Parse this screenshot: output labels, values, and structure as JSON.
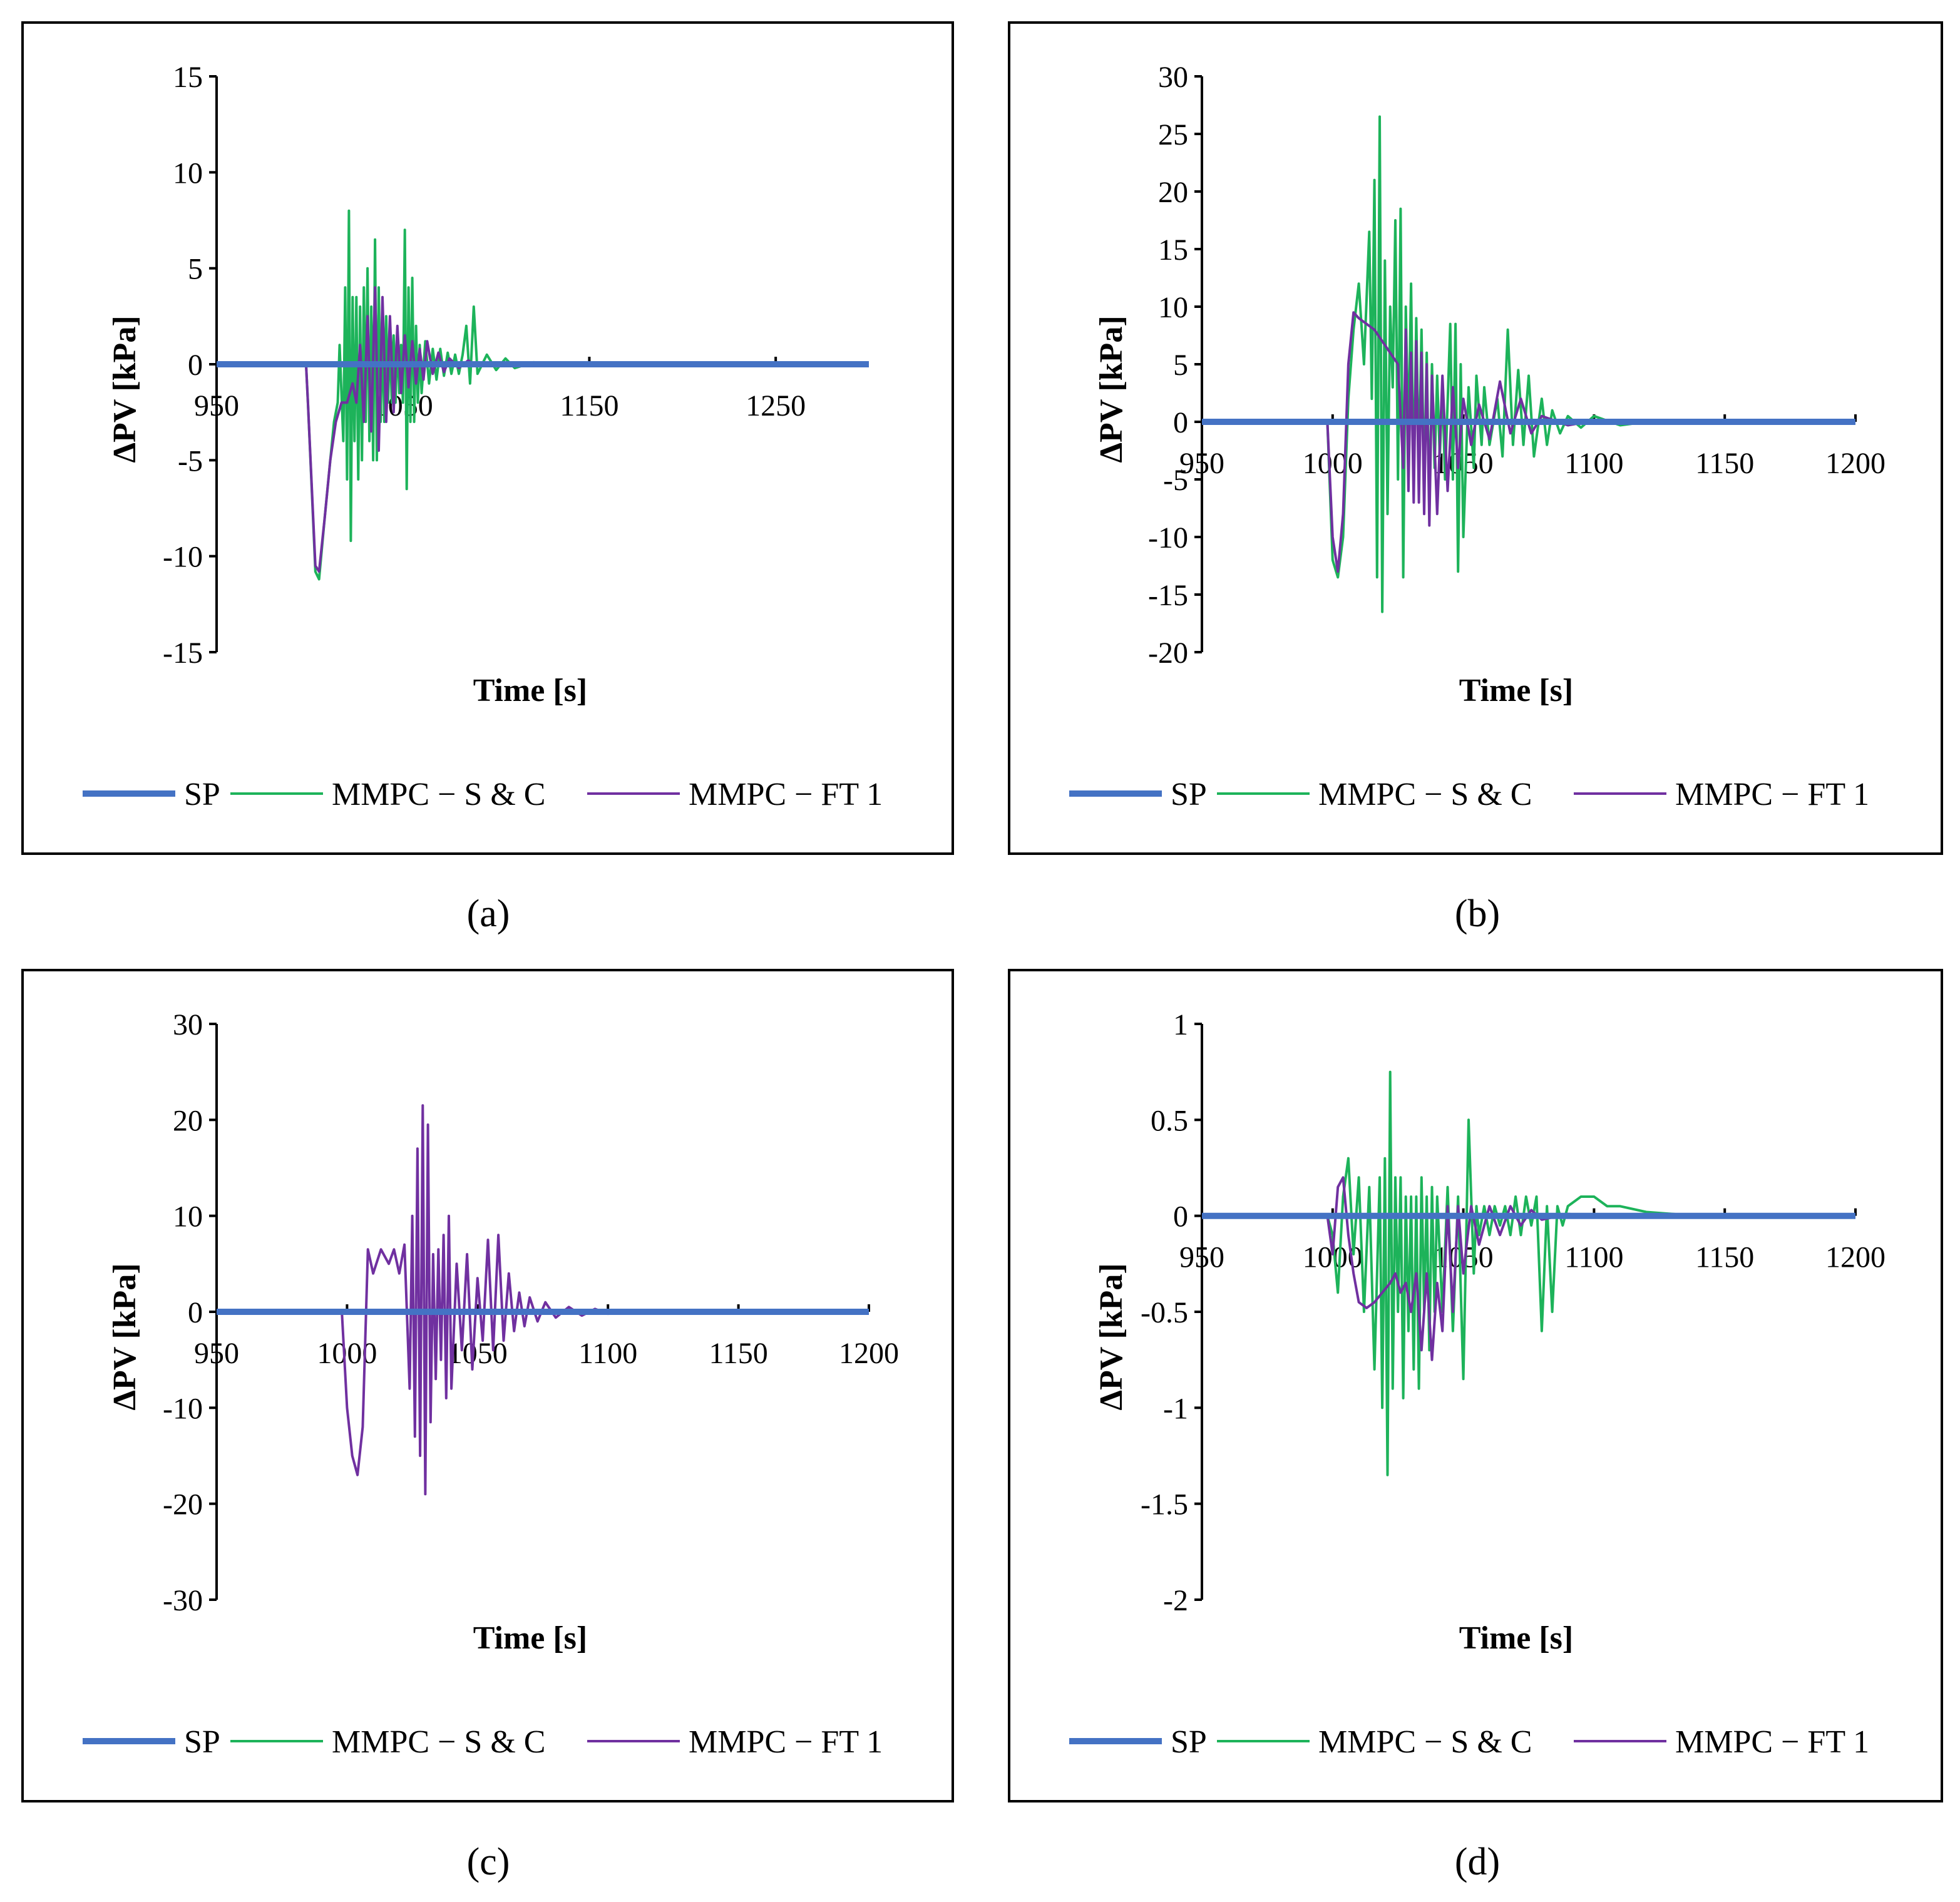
{
  "colors": {
    "sp": "#4472C4",
    "sc": "#1DB35A",
    "ft": "#7030A0",
    "axis": "#000000"
  },
  "legend_labels": [
    "SP",
    "MMPC − S & C",
    "MMPC − FT 1"
  ],
  "chart_data": [
    {
      "type": "line",
      "panel_label": "(a)",
      "xlabel": "Time [s]",
      "ylabel": "ΔPV [kPa]",
      "xlim": [
        950,
        1300
      ],
      "ylim": [
        -15,
        15
      ],
      "xticks": [
        950,
        1050,
        1150,
        1250
      ],
      "yticks": [
        15,
        10,
        5,
        0,
        -5,
        -10,
        -15
      ],
      "series": [
        {
          "name": "SP",
          "x": [
            950,
            1300
          ],
          "y": [
            0,
            0
          ]
        },
        {
          "name": "MMPC − S & C",
          "x": [
            950,
            998,
            999,
            1003,
            1005,
            1008,
            1011,
            1013,
            1015,
            1016,
            1018,
            1019,
            1020,
            1021,
            1022,
            1023,
            1024,
            1025,
            1026,
            1027,
            1028,
            1029,
            1030,
            1031,
            1032,
            1033,
            1034,
            1035,
            1036,
            1037,
            1038,
            1039,
            1040,
            1041,
            1042,
            1043,
            1044,
            1045,
            1046,
            1047,
            1048,
            1049,
            1050,
            1051,
            1052,
            1053,
            1054,
            1055,
            1056,
            1057,
            1058,
            1059,
            1060,
            1062,
            1064,
            1066,
            1068,
            1070,
            1072,
            1074,
            1076,
            1078,
            1080,
            1082,
            1084,
            1086,
            1088,
            1090,
            1095,
            1100,
            1105,
            1110,
            1120,
            1140,
            1300
          ],
          "y": [
            0,
            0,
            -2,
            -10.8,
            -11.2,
            -8,
            -5,
            -3,
            -2,
            1,
            -4,
            4,
            -6,
            8,
            -9.2,
            3.5,
            -4,
            3.5,
            -6,
            3,
            -5,
            4,
            -3,
            5,
            -4,
            3,
            -5,
            6.5,
            -5,
            4,
            -3,
            2,
            -3,
            2.5,
            -2,
            1.5,
            -2,
            1.5,
            -2,
            1.5,
            -1.5,
            1,
            -2,
            7,
            -6.5,
            4,
            -3,
            4.5,
            -3,
            2,
            -2,
            1,
            -1.5,
            1.2,
            -1,
            0.8,
            -0.8,
            0.8,
            -0.6,
            0.6,
            -0.5,
            0.5,
            -0.5,
            0.5,
            2,
            -1,
            3,
            -0.5,
            0.5,
            -0.3,
            0.3,
            -0.2,
            0.1,
            0,
            0
          ]
        },
        {
          "name": "MMPC − FT 1",
          "x": [
            950,
            998,
            999,
            1003,
            1005,
            1008,
            1011,
            1014,
            1017,
            1020,
            1023,
            1025,
            1027,
            1029,
            1031,
            1033,
            1035,
            1037,
            1039,
            1041,
            1043,
            1045,
            1047,
            1049,
            1051,
            1053,
            1055,
            1057,
            1059,
            1061,
            1063,
            1066,
            1069,
            1072,
            1075,
            1080,
            1085,
            1090,
            1100,
            1120,
            1300
          ],
          "y": [
            0,
            0,
            -2,
            -10.5,
            -10.8,
            -8,
            -5,
            -3,
            -2,
            -2,
            -1,
            -2,
            1,
            -3,
            2.5,
            -3.5,
            4,
            -4.5,
            3.5,
            -3,
            2.5,
            -2.5,
            2,
            -1.5,
            1.5,
            -1.2,
            1.2,
            -1,
            0.8,
            -0.8,
            1.2,
            -0.5,
            0.6,
            -0.4,
            0.3,
            -0.2,
            0.2,
            -0.1,
            0.05,
            0,
            0
          ]
        }
      ]
    },
    {
      "type": "line",
      "panel_label": "(b)",
      "xlabel": "Time [s]",
      "ylabel": "ΔPV [kPa]",
      "xlim": [
        950,
        1200
      ],
      "ylim": [
        -20,
        30
      ],
      "xticks": [
        950,
        1000,
        1050,
        1100,
        1150,
        1200
      ],
      "yticks": [
        30,
        25,
        20,
        15,
        10,
        5,
        0,
        -5,
        -10,
        -15,
        -20
      ],
      "series": [
        {
          "name": "SP",
          "x": [
            950,
            1200
          ],
          "y": [
            0,
            0
          ]
        },
        {
          "name": "MMPC − S & C",
          "x": [
            950,
            998,
            1000,
            1002,
            1004,
            1006,
            1008,
            1010,
            1012,
            1014,
            1015,
            1016,
            1017,
            1018,
            1019,
            1020,
            1021,
            1022,
            1023,
            1024,
            1025,
            1026,
            1027,
            1028,
            1029,
            1030,
            1031,
            1032,
            1033,
            1034,
            1035,
            1036,
            1037,
            1038,
            1039,
            1040,
            1041,
            1042,
            1043,
            1045,
            1046,
            1047,
            1048,
            1049,
            1050,
            1052,
            1054,
            1055,
            1057,
            1058,
            1060,
            1063,
            1065,
            1067,
            1069,
            1071,
            1073,
            1075,
            1077,
            1080,
            1082,
            1084,
            1087,
            1090,
            1095,
            1100,
            1110,
            1120,
            1200
          ],
          "y": [
            0,
            0,
            -12,
            -13.5,
            -10,
            2,
            8,
            12,
            5,
            16.5,
            2,
            21,
            -13.5,
            26.5,
            -16.5,
            14,
            -8,
            10,
            3,
            17.5,
            -5,
            18.5,
            -13.5,
            10,
            -2,
            12,
            -6,
            9,
            -4,
            8,
            -6,
            6,
            -8,
            5,
            -4,
            4,
            -3,
            3,
            -5,
            8.5,
            -5,
            8.5,
            -13,
            5,
            -10,
            3,
            -4,
            4,
            -2,
            3,
            -2,
            2,
            -3,
            8,
            -2,
            4.5,
            -2,
            4,
            -3,
            2,
            -2,
            1,
            -1,
            0.5,
            -0.5,
            0.5,
            -0.3,
            0,
            0
          ]
        },
        {
          "name": "MMPC − FT 1",
          "x": [
            950,
            998,
            1000,
            1002,
            1004,
            1006,
            1008,
            1010,
            1013,
            1016,
            1019,
            1022,
            1025,
            1027,
            1028,
            1029,
            1030,
            1031,
            1032,
            1033,
            1034,
            1035,
            1036,
            1037,
            1038,
            1040,
            1042,
            1044,
            1046,
            1048,
            1050,
            1053,
            1056,
            1060,
            1064,
            1068,
            1072,
            1076,
            1080,
            1090,
            1100,
            1200
          ],
          "y": [
            0,
            0,
            -10,
            -13,
            -8,
            5,
            9.5,
            9,
            8.5,
            8,
            7,
            6,
            5,
            -4,
            8,
            -6,
            6,
            -7,
            7,
            -7,
            6,
            -8,
            5,
            -9,
            4,
            -8,
            4,
            -6,
            3,
            -4,
            2,
            -2,
            1.5,
            -1.5,
            3.5,
            -1,
            2,
            -1,
            0.5,
            -0.3,
            0.1,
            0
          ]
        }
      ]
    },
    {
      "type": "line",
      "panel_label": "(c)",
      "xlabel": "Time [s]",
      "ylabel": "ΔPV [kPa]",
      "xlim": [
        950,
        1200
      ],
      "ylim": [
        -30,
        30
      ],
      "xticks": [
        950,
        1000,
        1050,
        1100,
        1150,
        1200
      ],
      "yticks": [
        30,
        20,
        10,
        0,
        -10,
        -20,
        -30
      ],
      "series": [
        {
          "name": "SP",
          "x": [
            950,
            1200
          ],
          "y": [
            0,
            0
          ]
        },
        {
          "name": "MMPC − S & C",
          "x": [
            950,
            1200
          ],
          "y": [
            0,
            0
          ]
        },
        {
          "name": "MMPC − FT 1",
          "x": [
            950,
            998,
            1000,
            1002,
            1004,
            1006,
            1008,
            1010,
            1013,
            1016,
            1018,
            1020,
            1022,
            1024,
            1025,
            1026,
            1027,
            1028,
            1029,
            1030,
            1031,
            1032,
            1033,
            1034,
            1035,
            1036,
            1037,
            1038,
            1039,
            1040,
            1042,
            1044,
            1046,
            1048,
            1050,
            1052,
            1054,
            1056,
            1058,
            1060,
            1062,
            1064,
            1066,
            1068,
            1070,
            1073,
            1076,
            1080,
            1085,
            1090,
            1095,
            1100,
            1110,
            1120,
            1200
          ],
          "y": [
            0,
            0,
            -10,
            -15,
            -17,
            -12,
            6.5,
            4,
            6.5,
            5,
            6.5,
            4,
            7,
            -8,
            10,
            -13,
            17,
            -15,
            21.5,
            -19,
            19.5,
            -11.5,
            6,
            -7,
            6.5,
            -5,
            8,
            -9,
            10,
            -8,
            5,
            -4,
            6,
            -6,
            3.5,
            -3,
            7.5,
            -4,
            8,
            -3,
            4,
            -2,
            2,
            -1.5,
            1.5,
            -1,
            1,
            -0.6,
            0.5,
            -0.4,
            0.3,
            -0.2,
            0.1,
            0,
            0
          ]
        }
      ]
    },
    {
      "type": "line",
      "panel_label": "(d)",
      "xlabel": "Time [s]",
      "ylabel": "ΔPV [kPa]",
      "xlim": [
        950,
        1200
      ],
      "ylim": [
        -2,
        1
      ],
      "xticks": [
        950,
        1000,
        1050,
        1100,
        1150,
        1200
      ],
      "yticks": [
        1,
        0.5,
        0,
        -0.5,
        -1,
        -1.5,
        -2
      ],
      "series": [
        {
          "name": "SP",
          "x": [
            950,
            1200
          ],
          "y": [
            0,
            0
          ]
        },
        {
          "name": "MMPC − S & C",
          "x": [
            950,
            998,
            1000,
            1002,
            1004,
            1006,
            1008,
            1010,
            1012,
            1014,
            1016,
            1018,
            1019,
            1020,
            1021,
            1022,
            1023,
            1024,
            1025,
            1026,
            1027,
            1028,
            1029,
            1030,
            1031,
            1032,
            1033,
            1034,
            1035,
            1036,
            1037,
            1038,
            1039,
            1040,
            1042,
            1044,
            1046,
            1048,
            1050,
            1052,
            1054,
            1055,
            1056,
            1058,
            1060,
            1062,
            1064,
            1066,
            1068,
            1070,
            1072,
            1074,
            1076,
            1078,
            1080,
            1082,
            1084,
            1086,
            1088,
            1090,
            1095,
            1100,
            1105,
            1110,
            1120,
            1130,
            1140,
            1150,
            1200
          ],
          "y": [
            0,
            0,
            -0.1,
            -0.4,
            0.1,
            0.3,
            -0.2,
            0.2,
            -0.5,
            0.15,
            -0.8,
            0.2,
            -1.0,
            0.3,
            -1.35,
            0.75,
            -0.9,
            0.2,
            -0.5,
            0.2,
            -0.95,
            0.1,
            -0.6,
            0.1,
            -0.8,
            0.1,
            -0.9,
            0.2,
            -0.5,
            0.1,
            -0.7,
            0.15,
            -0.5,
            0.1,
            -0.5,
            0.15,
            -0.6,
            0.1,
            -0.85,
            0.5,
            -0.3,
            0.05,
            -0.1,
            0.05,
            -0.1,
            0.05,
            -0.05,
            0.05,
            -0.1,
            0.1,
            -0.1,
            0.1,
            -0.05,
            0.1,
            -0.6,
            0.05,
            -0.5,
            0.05,
            -0.05,
            0.05,
            0.1,
            0.1,
            0.05,
            0.05,
            0.02,
            0.01,
            0,
            0,
            0
          ]
        },
        {
          "name": "MMPC − FT 1",
          "x": [
            950,
            998,
            1000,
            1002,
            1004,
            1006,
            1008,
            1010,
            1013,
            1016,
            1019,
            1022,
            1024,
            1026,
            1028,
            1030,
            1032,
            1034,
            1036,
            1038,
            1040,
            1042,
            1044,
            1046,
            1048,
            1050,
            1053,
            1056,
            1060,
            1064,
            1068,
            1072,
            1076,
            1080,
            1090,
            1100,
            1200
          ],
          "y": [
            0,
            0,
            -0.2,
            0.15,
            0.2,
            -0.1,
            -0.3,
            -0.45,
            -0.48,
            -0.45,
            -0.4,
            -0.35,
            -0.3,
            -0.4,
            -0.35,
            -0.5,
            -0.3,
            -0.7,
            -0.3,
            -0.75,
            -0.35,
            -0.6,
            0.05,
            -0.5,
            0.05,
            -0.3,
            0.05,
            -0.15,
            0.05,
            -0.1,
            0.05,
            -0.05,
            0.03,
            -0.02,
            0.01,
            0,
            0
          ]
        }
      ]
    }
  ]
}
